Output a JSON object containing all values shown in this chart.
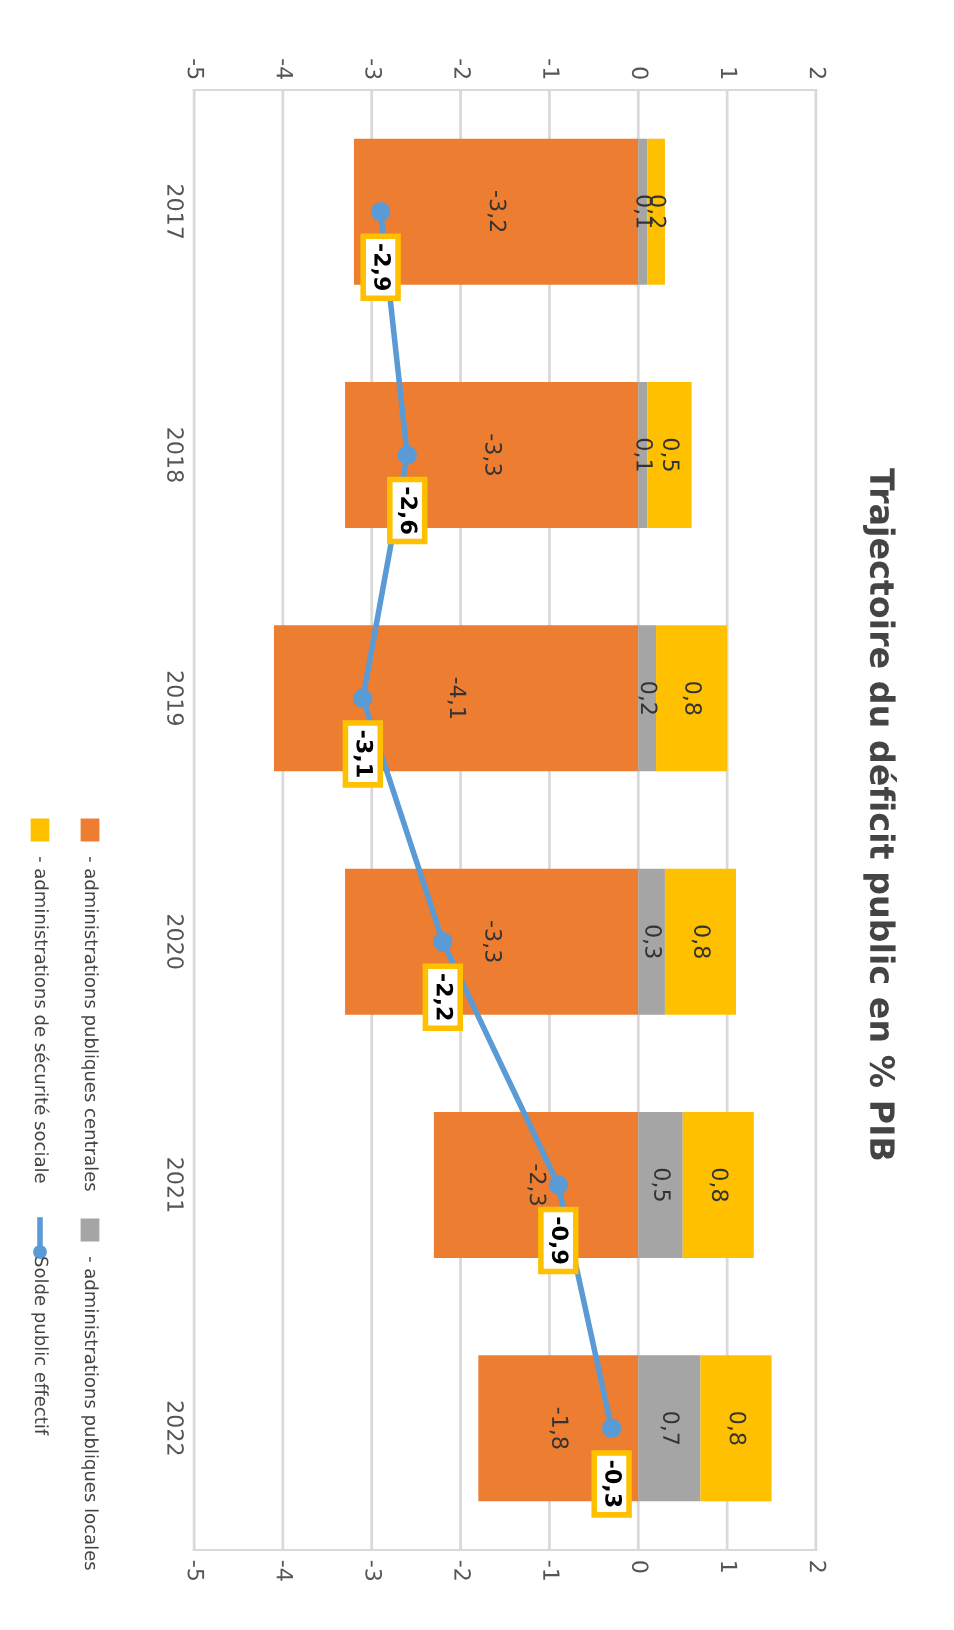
{
  "chart_data": {
    "type": "bar",
    "orientation": "horizontal",
    "stacked": true,
    "title": "Trajectoire du déficit public en % PIB",
    "categories": [
      "2017",
      "2018",
      "2019",
      "2020",
      "2021",
      "2022"
    ],
    "series": [
      {
        "name": "- administrations publiques centrales",
        "color": "#ed7d31",
        "values": [
          -3.2,
          -3.3,
          -4.1,
          -3.3,
          -2.3,
          -1.8
        ],
        "value_labels": [
          "-3,2",
          "-3,3",
          "-4,1",
          "-3,3",
          "-2,3",
          "-1,8"
        ]
      },
      {
        "name": "- administrations publiques locales",
        "color": "#a5a5a5",
        "values": [
          0.1,
          0.1,
          0.2,
          0.3,
          0.5,
          0.7
        ],
        "value_labels": [
          "0,1",
          "0,1",
          "0,2",
          "0,3",
          "0,5",
          "0,7"
        ]
      },
      {
        "name": "- administrations de sécurité sociale",
        "color": "#ffc000",
        "values": [
          0.2,
          0.5,
          0.8,
          0.8,
          0.8,
          0.8
        ],
        "value_labels": [
          "0,2",
          "0,5",
          "0,8",
          "0,8",
          "0,8",
          "0,8"
        ]
      },
      {
        "name": "Solde public effectif",
        "type": "line",
        "color": "#5b9bd5",
        "marker": "circle",
        "values": [
          -2.9,
          -2.6,
          -3.1,
          -2.2,
          -0.9,
          -0.3
        ],
        "value_labels": [
          "-2,9",
          "-2,6",
          "-3,1",
          "-2,2",
          "-0,9",
          "-0,3"
        ]
      }
    ],
    "xlim": [
      -5,
      2
    ],
    "xticks": [
      -5,
      -4,
      -3,
      -2,
      -1,
      0,
      1,
      2
    ],
    "x2lim": [
      -5,
      2
    ],
    "x2ticks": [
      -5,
      -4,
      -3,
      -2,
      -1,
      0,
      1,
      2
    ],
    "grid": "x",
    "legend": "left"
  }
}
